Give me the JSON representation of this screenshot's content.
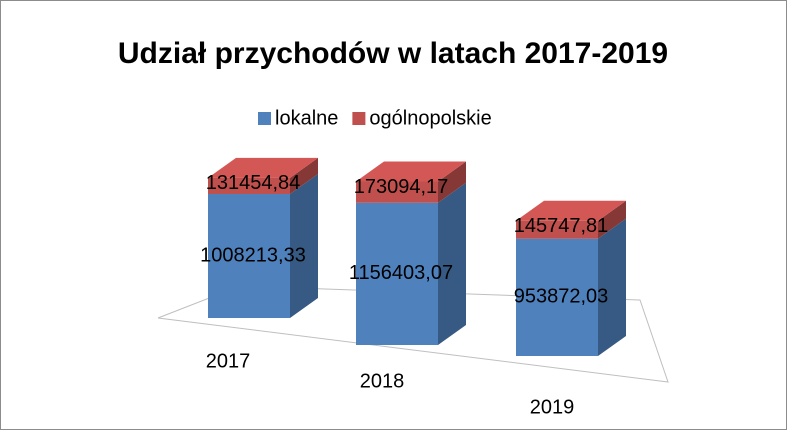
{
  "chart_data": {
    "type": "bar3d_stacked",
    "title": "Udział przychodów w latach 2017-2019",
    "categories": [
      "2017",
      "2018",
      "2019"
    ],
    "series": [
      {
        "name": "lokalne",
        "color": "#4f81bd",
        "values": [
          1008213.33,
          1156403.07,
          953872.03
        ],
        "value_labels": [
          "1008213,33",
          "1156403,07",
          "953872,03"
        ]
      },
      {
        "name": "ogólnopolskie",
        "color": "#c0504d",
        "values": [
          131454.84,
          173094.17,
          145747.81
        ],
        "value_labels": [
          "131454,84",
          "173094,17",
          "145747,81"
        ]
      }
    ],
    "legend": "top"
  }
}
